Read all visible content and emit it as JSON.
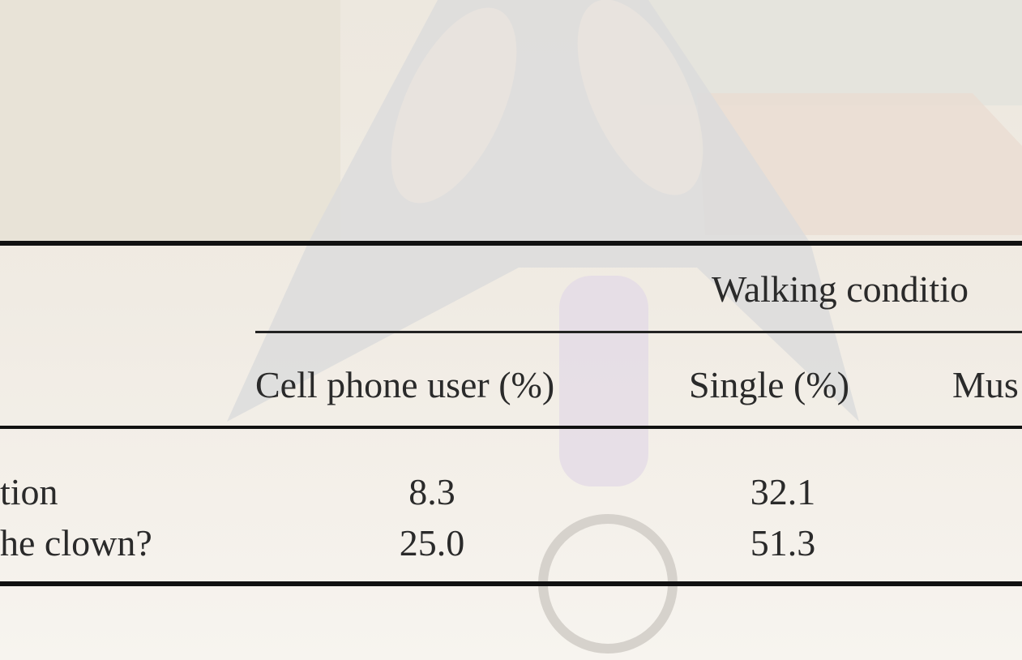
{
  "table": {
    "group_header": "Walking conditio",
    "columns": [
      "Cell phone user (%)",
      "Single (%)",
      "Mus"
    ],
    "rows": [
      [
        "tion",
        "8.3",
        "32.1"
      ],
      [
        "he clown?",
        "25.0",
        "51.3"
      ]
    ]
  }
}
